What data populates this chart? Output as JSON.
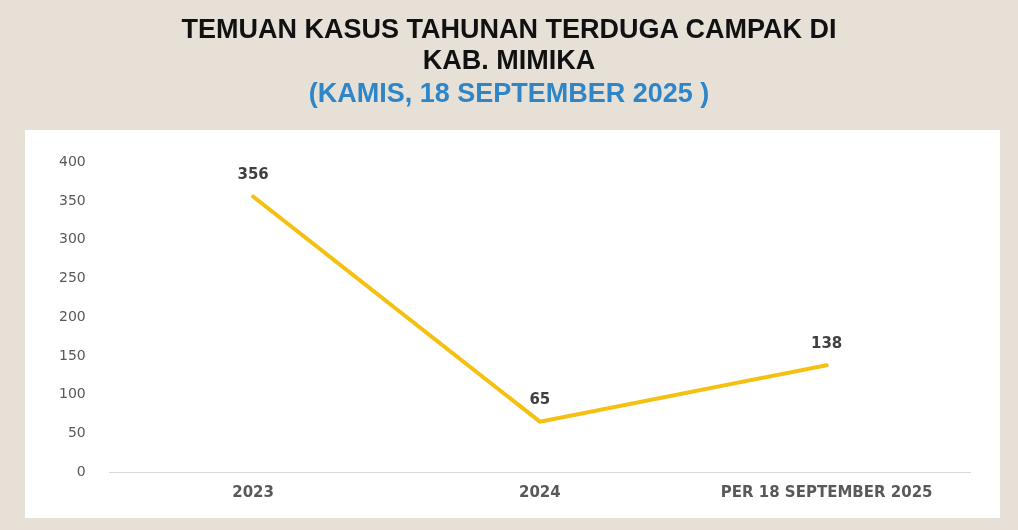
{
  "chart_data": {
    "type": "line",
    "title": "TEMUAN KASUS TAHUNAN TERDUGA CAMPAK DI KAB. MIMIKA",
    "subtitle": "(KAMIS, 18 SEPTEMBER 2025 )",
    "categories": [
      "2023",
      "2024",
      "PER 18 SEPTEMBER 2025"
    ],
    "series": [
      {
        "color": "#f5c012",
        "values": [
          356,
          65,
          138
        ]
      }
    ],
    "ylim": [
      0,
      400
    ],
    "yticks": [
      0,
      50,
      100,
      150,
      200,
      250,
      300,
      350,
      400
    ],
    "grid": false,
    "legend": false,
    "marker": "none",
    "line_style": "solid",
    "data_labels": true
  }
}
